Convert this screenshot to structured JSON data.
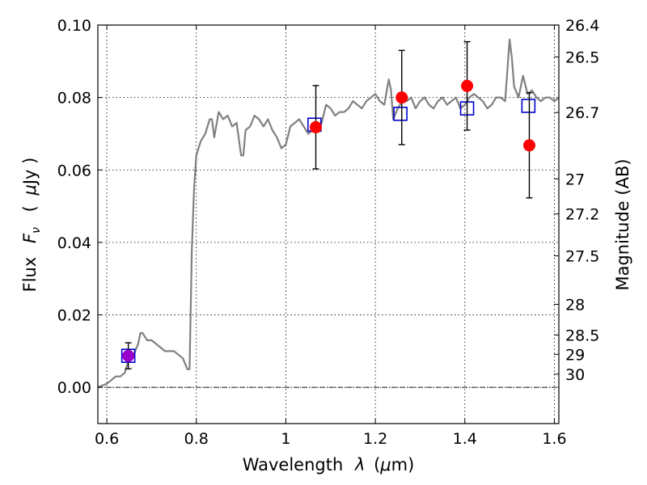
{
  "chart_data": {
    "type": "scatter",
    "xlabel_text": "Wavelength",
    "xlabel_symbol": "λ",
    "xlabel_unit_pre": "(",
    "xlabel_unit_mu": "μ",
    "xlabel_unit_post": "m)",
    "ylabel_text": "Flux",
    "ylabel_symbol": "F",
    "ylabel_sub": "ν",
    "ylabel_unit_pre": "(",
    "ylabel_unit_mu": "μ",
    "ylabel_unit_post": "Jy )",
    "y2label": "Magnitude (AB)",
    "xlim": [
      0.58,
      1.61
    ],
    "ylim": [
      -0.01,
      0.1
    ],
    "xticks": [
      0.6,
      0.8,
      1.0,
      1.2,
      1.4,
      1.6
    ],
    "xtick_labels": [
      "0.6",
      "0.8",
      "1",
      "1.2",
      "1.4",
      "1.6"
    ],
    "yticks": [
      0.0,
      0.02,
      0.04,
      0.06,
      0.08,
      0.1
    ],
    "ytick_labels": [
      "0.00",
      "0.02",
      "0.04",
      "0.06",
      "0.08",
      "0.10"
    ],
    "mag_ticks": [
      26.4,
      26.5,
      26.7,
      27,
      27.2,
      27.5,
      28,
      28.5,
      29,
      30
    ],
    "mag_tick_labels": [
      "26.4",
      "26.5",
      "26.7",
      "27",
      "27.2",
      "27.5",
      "28",
      "28.5",
      "29",
      "30"
    ],
    "grid": true,
    "series": [
      {
        "name": "model spectrum",
        "kind": "line",
        "color": "#808080",
        "x": [
          0.58,
          0.6,
          0.62,
          0.63,
          0.64,
          0.65,
          0.66,
          0.67,
          0.675,
          0.68,
          0.69,
          0.7,
          0.71,
          0.72,
          0.73,
          0.74,
          0.75,
          0.76,
          0.77,
          0.78,
          0.785,
          0.79,
          0.795,
          0.8,
          0.81,
          0.82,
          0.83,
          0.835,
          0.84,
          0.85,
          0.86,
          0.87,
          0.88,
          0.89,
          0.9,
          0.905,
          0.91,
          0.92,
          0.93,
          0.94,
          0.95,
          0.96,
          0.97,
          0.98,
          0.99,
          1.0,
          1.01,
          1.02,
          1.03,
          1.04,
          1.05,
          1.06,
          1.07,
          1.08,
          1.09,
          1.1,
          1.11,
          1.12,
          1.13,
          1.14,
          1.15,
          1.16,
          1.17,
          1.18,
          1.19,
          1.2,
          1.21,
          1.22,
          1.23,
          1.235,
          1.24,
          1.25,
          1.26,
          1.27,
          1.28,
          1.29,
          1.3,
          1.31,
          1.32,
          1.33,
          1.34,
          1.35,
          1.36,
          1.37,
          1.38,
          1.39,
          1.4,
          1.41,
          1.42,
          1.43,
          1.44,
          1.45,
          1.46,
          1.47,
          1.48,
          1.49,
          1.5,
          1.505,
          1.51,
          1.52,
          1.53,
          1.54,
          1.55,
          1.56,
          1.57,
          1.58,
          1.59,
          1.6,
          1.61
        ],
        "y": [
          0.0,
          0.001,
          0.003,
          0.003,
          0.004,
          0.008,
          0.009,
          0.012,
          0.015,
          0.015,
          0.013,
          0.013,
          0.012,
          0.011,
          0.01,
          0.01,
          0.01,
          0.009,
          0.008,
          0.005,
          0.005,
          0.038,
          0.055,
          0.064,
          0.068,
          0.07,
          0.074,
          0.074,
          0.069,
          0.076,
          0.074,
          0.075,
          0.072,
          0.073,
          0.064,
          0.064,
          0.071,
          0.072,
          0.075,
          0.074,
          0.072,
          0.074,
          0.071,
          0.069,
          0.066,
          0.067,
          0.072,
          0.073,
          0.074,
          0.072,
          0.07,
          0.071,
          0.071,
          0.073,
          0.078,
          0.077,
          0.075,
          0.076,
          0.076,
          0.077,
          0.079,
          0.078,
          0.077,
          0.079,
          0.08,
          0.081,
          0.079,
          0.078,
          0.085,
          0.082,
          0.074,
          0.077,
          0.079,
          0.079,
          0.08,
          0.077,
          0.079,
          0.08,
          0.078,
          0.077,
          0.079,
          0.08,
          0.078,
          0.079,
          0.08,
          0.077,
          0.078,
          0.08,
          0.081,
          0.08,
          0.079,
          0.077,
          0.078,
          0.08,
          0.08,
          0.079,
          0.096,
          0.091,
          0.083,
          0.08,
          0.086,
          0.081,
          0.082,
          0.08,
          0.079,
          0.08,
          0.08,
          0.079,
          0.08
        ]
      },
      {
        "name": "model photometry",
        "kind": "open-square",
        "color": "#0000cc",
        "x": [
          0.648,
          1.064,
          1.256,
          1.405,
          1.542
        ],
        "y": [
          0.0087,
          0.0725,
          0.0755,
          0.077,
          0.0777
        ]
      },
      {
        "name": "observed photometry",
        "kind": "filled-circle",
        "color": "#ff0000",
        "x": [
          1.067,
          1.259,
          1.405,
          1.544
        ],
        "y": [
          0.0718,
          0.08,
          0.0832,
          0.0668
        ],
        "yerr": [
          0.0115,
          0.013,
          0.0122,
          0.0145
        ]
      },
      {
        "name": "observed photometry (short)",
        "kind": "filled-circle",
        "color": "#9900cc",
        "x": [
          0.648
        ],
        "y": [
          0.0087
        ],
        "yerr": [
          0.0036
        ]
      }
    ]
  }
}
